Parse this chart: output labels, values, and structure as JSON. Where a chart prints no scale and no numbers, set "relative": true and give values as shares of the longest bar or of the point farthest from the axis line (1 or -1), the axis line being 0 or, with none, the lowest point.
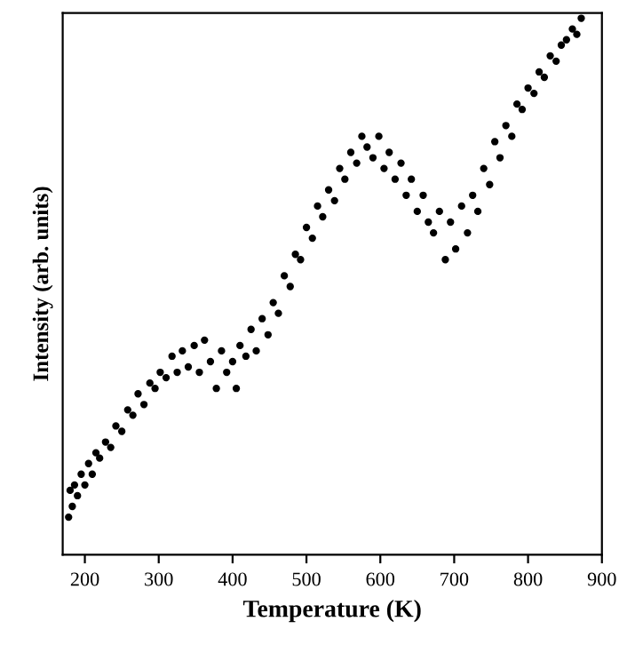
{
  "chart_data": {
    "type": "scatter",
    "relative": true,
    "xlabel": "Temperature (K)",
    "ylabel": "Intensity (arb. units)",
    "xlim": [
      170,
      900
    ],
    "xticks": [
      200,
      300,
      400,
      500,
      600,
      700,
      800,
      900
    ],
    "grid": false,
    "legend": false,
    "marker": "circle",
    "series": [
      {
        "color": "#000000",
        "x": [
          178,
          180,
          183,
          186,
          190,
          195,
          200,
          205,
          210,
          215,
          220,
          228,
          235,
          242,
          250,
          258,
          265,
          272,
          280,
          288,
          295,
          302,
          310,
          318,
          325,
          332,
          340,
          348,
          355,
          362,
          370,
          378,
          385,
          392,
          400,
          405,
          410,
          418,
          425,
          432,
          440,
          448,
          455,
          462,
          470,
          478,
          485,
          492,
          500,
          508,
          515,
          522,
          530,
          538,
          545,
          552,
          560,
          568,
          575,
          582,
          590,
          598,
          605,
          612,
          620,
          628,
          635,
          642,
          650,
          658,
          665,
          672,
          680,
          688,
          695,
          702,
          710,
          718,
          725,
          732,
          740,
          748,
          755,
          762,
          770,
          778,
          785,
          792,
          800,
          808,
          815,
          822,
          830,
          838,
          845,
          852,
          860,
          866,
          872
        ],
        "values": [
          0.07,
          0.12,
          0.09,
          0.13,
          0.11,
          0.15,
          0.13,
          0.17,
          0.15,
          0.19,
          0.18,
          0.21,
          0.2,
          0.24,
          0.23,
          0.27,
          0.26,
          0.3,
          0.28,
          0.32,
          0.31,
          0.34,
          0.33,
          0.37,
          0.34,
          0.38,
          0.35,
          0.39,
          0.34,
          0.4,
          0.36,
          0.31,
          0.38,
          0.34,
          0.36,
          0.31,
          0.39,
          0.37,
          0.42,
          0.38,
          0.44,
          0.41,
          0.47,
          0.45,
          0.52,
          0.5,
          0.56,
          0.55,
          0.61,
          0.59,
          0.65,
          0.63,
          0.68,
          0.66,
          0.72,
          0.7,
          0.75,
          0.73,
          0.78,
          0.76,
          0.74,
          0.78,
          0.72,
          0.75,
          0.7,
          0.73,
          0.67,
          0.7,
          0.64,
          0.67,
          0.62,
          0.6,
          0.64,
          0.55,
          0.62,
          0.57,
          0.65,
          0.6,
          0.67,
          0.64,
          0.72,
          0.69,
          0.77,
          0.74,
          0.8,
          0.78,
          0.84,
          0.83,
          0.87,
          0.86,
          0.9,
          0.89,
          0.93,
          0.92,
          0.95,
          0.96,
          0.98,
          0.97,
          1.0
        ]
      }
    ]
  }
}
